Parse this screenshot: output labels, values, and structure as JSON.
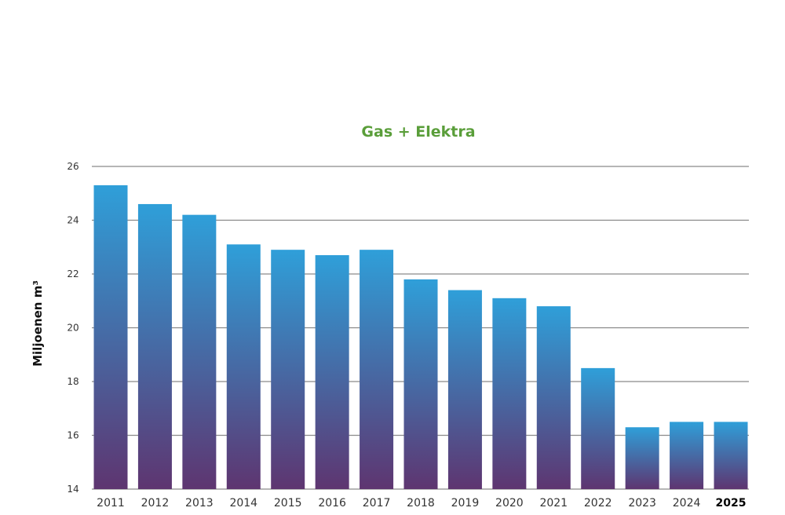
{
  "chart_data": {
    "type": "bar",
    "title": "Gas + Elektra",
    "xlabel": "",
    "ylabel": "Miljoenen m³",
    "categories": [
      "2011",
      "2012",
      "2013",
      "2014",
      "2015",
      "2016",
      "2017",
      "2018",
      "2019",
      "2020",
      "2021",
      "2022",
      "2023",
      "2024",
      "2025"
    ],
    "values": [
      25.3,
      24.6,
      24.2,
      23.1,
      22.9,
      22.7,
      22.9,
      21.8,
      21.4,
      21.1,
      20.8,
      18.5,
      16.3,
      16.5,
      16.5
    ],
    "ylim": [
      14,
      26
    ],
    "yticks": [
      "14",
      "16",
      "18",
      "20",
      "22",
      "24",
      "26"
    ],
    "highlighted_category": "2025",
    "grid": true,
    "legend": "none"
  },
  "colors": {
    "title": "#5a9e3a",
    "bar_top": "#2f9fd9",
    "bar_bottom": "#5e3570",
    "grid": "#8a8a8a"
  }
}
